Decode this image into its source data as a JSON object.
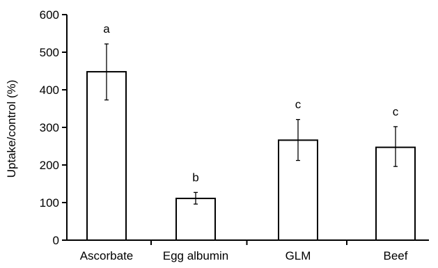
{
  "chart_data": {
    "type": "bar",
    "title": "",
    "xlabel": "",
    "ylabel": "Uptake/control (%)",
    "ylim": [
      0,
      600
    ],
    "yticks": [
      0,
      100,
      200,
      300,
      400,
      500,
      600
    ],
    "grid": false,
    "legend": "none",
    "categories": [
      "Ascorbate",
      "Egg albumin",
      "GLM",
      "Beef"
    ],
    "values": [
      448,
      111,
      266,
      247
    ],
    "error_low": [
      373,
      96,
      212,
      196
    ],
    "error_high": [
      522,
      127,
      321,
      302
    ],
    "annotations": [
      "a",
      "b",
      "c",
      "c"
    ],
    "bar_fill": "#ffffff",
    "bar_stroke": "#000000"
  }
}
